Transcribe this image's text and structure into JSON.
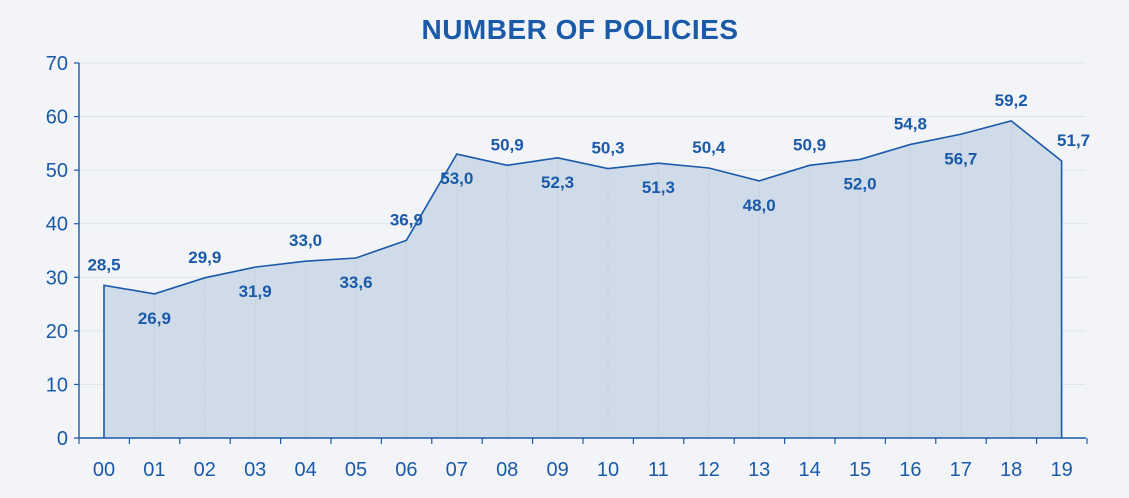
{
  "chart_data": {
    "type": "area",
    "title": "NUMBER OF POLICIES",
    "xlabel": "",
    "ylabel": "",
    "categories": [
      "00",
      "01",
      "02",
      "03",
      "04",
      "05",
      "06",
      "07",
      "08",
      "09",
      "10",
      "11",
      "12",
      "13",
      "14",
      "15",
      "16",
      "17",
      "18",
      "19"
    ],
    "values": [
      28.5,
      26.9,
      29.9,
      31.9,
      33.0,
      33.6,
      36.9,
      53.0,
      50.9,
      52.3,
      50.3,
      51.3,
      50.4,
      48.0,
      50.9,
      52.0,
      54.8,
      56.7,
      59.2,
      51.7
    ],
    "data_labels": [
      "28,5",
      "26,9",
      "29,9",
      "31,9",
      "33,0",
      "33,6",
      "36,9",
      "53,0",
      "50,9",
      "52,3",
      "50,3",
      "51,3",
      "50,4",
      "48,0",
      "50,9",
      "52,0",
      "54,8",
      "56,7",
      "59,2",
      "51,7"
    ],
    "label_position": [
      "above",
      "below",
      "above",
      "below",
      "above",
      "below",
      "above",
      "below",
      "above",
      "below",
      "above",
      "below",
      "above",
      "below",
      "above",
      "below",
      "above",
      "below",
      "above",
      "above"
    ],
    "ylim": [
      0,
      70
    ],
    "yticks": [
      "0",
      "10",
      "20",
      "30",
      "40",
      "50",
      "60",
      "70"
    ],
    "grid": true,
    "colors": {
      "line": "#1a5aa8",
      "fill": "#cfdbe8",
      "text": "#1a5aa8",
      "axis": "#1a5aa8",
      "grid": "#dde3ea",
      "background": "#f2f4f7"
    }
  }
}
